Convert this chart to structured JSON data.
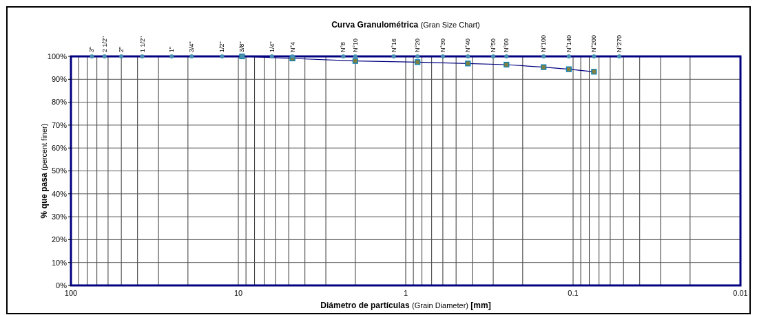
{
  "chart_data": {
    "type": "line",
    "title": "Curva Granulométrica (Gran Size Chart)",
    "xlabel": "Diámetro de partículas (Grain Diameter) [mm]",
    "ylabel": "% que pasa (percent finer)",
    "log": "x",
    "xlim": [
      100,
      0.01
    ],
    "xticks": [
      100,
      {
        "value": 90,
        "label": null
      },
      {
        "value": 80,
        "label": null
      },
      {
        "value": 70,
        "label": null
      },
      {
        "value": 60,
        "label": null
      },
      {
        "value": 50,
        "label": null
      },
      {
        "value": 40,
        "label": null
      },
      {
        "value": 30,
        "label": null
      },
      {
        "value": 20,
        "label": null
      },
      10,
      {
        "value": 9,
        "label": null
      },
      {
        "value": 8,
        "label": null
      },
      {
        "value": 7,
        "label": null
      },
      {
        "value": 6,
        "label": null
      },
      {
        "value": 5,
        "label": null
      },
      {
        "value": 4,
        "label": null
      },
      {
        "value": 3,
        "label": null
      },
      {
        "value": 2,
        "label": null
      },
      1,
      {
        "value": 0.9,
        "label": null
      },
      {
        "value": 0.8,
        "label": null
      },
      {
        "value": 0.7,
        "label": null
      },
      {
        "value": 0.6,
        "label": null
      },
      {
        "value": 0.5,
        "label": null
      },
      {
        "value": 0.4,
        "label": null
      },
      {
        "value": 0.3,
        "label": null
      },
      {
        "value": 0.2,
        "label": null
      },
      0.1,
      {
        "value": 0.09,
        "label": null
      },
      {
        "value": 0.08,
        "label": null
      },
      {
        "value": 0.07,
        "label": null
      },
      {
        "value": 0.06,
        "label": null
      },
      {
        "value": 0.05,
        "label": null
      },
      {
        "value": 0.04,
        "label": null
      },
      {
        "value": 0.03,
        "label": null
      },
      {
        "value": 0.02,
        "label": null
      },
      0.01
    ],
    "annotations": [
      {
        "text": "3\"",
        "x": 75,
        "y": 100
      },
      {
        "text": "2 1/2\"",
        "x": 63,
        "y": 100
      },
      {
        "text": "2\"",
        "x": 50,
        "y": 100
      },
      {
        "text": "1 1/2\"",
        "x": 37.5,
        "y": 100
      },
      {
        "text": "1\"",
        "x": 25,
        "y": 100
      },
      {
        "text": "3/4\"",
        "x": 19,
        "y": 100
      },
      {
        "text": "1/2\"",
        "x": 12.5,
        "y": 100
      },
      {
        "text": "3/8\"",
        "x": 9.5,
        "y": 100
      },
      {
        "text": "1/4\"",
        "x": 6.3,
        "y": 100
      },
      {
        "text": "N°4",
        "x": 4.75,
        "y": 100
      },
      {
        "text": "N°8",
        "x": 2.36,
        "y": 100
      },
      {
        "text": "N°10",
        "x": 2,
        "y": 100
      },
      {
        "text": "N°16",
        "x": 1.18,
        "y": 100
      },
      {
        "text": "N°20",
        "x": 0.85,
        "y": 100
      },
      {
        "text": "N°30",
        "x": 0.6,
        "y": 100
      },
      {
        "text": "N°40",
        "x": 0.425,
        "y": 100
      },
      {
        "text": "N°50",
        "x": 0.3,
        "y": 100
      },
      {
        "text": "N°60",
        "x": 0.25,
        "y": 100
      },
      {
        "text": "N°100",
        "x": 0.15,
        "y": 100
      },
      {
        "text": "N°140",
        "x": 0.106,
        "y": 100
      },
      {
        "text": "N°200",
        "x": 0.075,
        "y": 100
      },
      {
        "text": "N°270",
        "x": 0.053,
        "y": 100
      }
    ],
    "ylim": [
      0,
      100
    ],
    "yticks": [
      {
        "value": 0,
        "label": "0%"
      },
      {
        "value": 10,
        "label": "10%"
      },
      {
        "value": 20,
        "label": "20%"
      },
      {
        "value": 30,
        "label": "30%"
      },
      {
        "value": 40,
        "label": "40%"
      },
      {
        "value": 50,
        "label": "50%"
      },
      {
        "value": 60,
        "label": "60%"
      },
      {
        "value": 70,
        "label": "70%"
      },
      {
        "value": 80,
        "label": "80%"
      },
      {
        "value": 90,
        "label": "90%"
      },
      {
        "value": 100,
        "label": "100%"
      }
    ],
    "grid": true,
    "marker": "square",
    "line_style": "solid",
    "series": [
      {
        "type": "scatter",
        "color": "#4a90b0",
        "marker": "circle",
        "x": [
          75,
          63,
          50,
          37.5,
          25,
          19,
          12.5,
          9.5,
          6.3,
          4.75,
          2.36,
          2,
          1.18,
          0.85,
          0.6,
          0.425,
          0.3,
          0.25,
          0.15,
          0.106,
          0.075,
          0.053
        ],
        "values": [
          100,
          100,
          100,
          100,
          100,
          100,
          100,
          100,
          100,
          100,
          100,
          100,
          100,
          100,
          100,
          100,
          100,
          100,
          100,
          100,
          100,
          100
        ]
      },
      {
        "color": "#000080",
        "x": [
          9.5,
          4.75,
          2,
          0.85,
          0.425,
          0.25,
          0.15,
          0.106,
          0.075
        ],
        "values": [
          100,
          99.1,
          98.0,
          97.5,
          96.9,
          96.4,
          95.3,
          94.4,
          93.3
        ]
      }
    ]
  }
}
